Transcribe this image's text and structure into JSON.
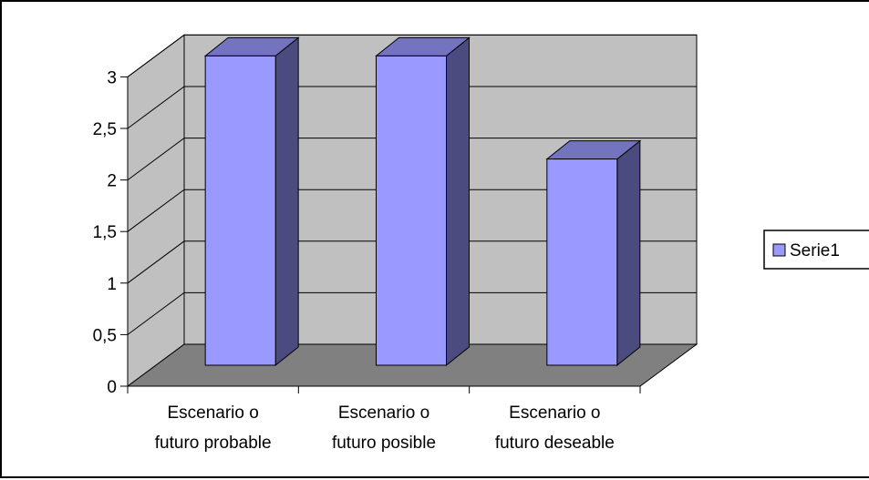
{
  "chart_data": {
    "type": "bar",
    "categories": [
      [
        "Escenario o",
        "futuro probable"
      ],
      [
        "Escenario o",
        "futuro posible"
      ],
      [
        "Escenario o",
        "futuro deseable"
      ]
    ],
    "series": [
      {
        "name": "Serie1",
        "values": [
          3,
          3,
          2
        ]
      }
    ],
    "title": "",
    "xlabel": "",
    "ylabel": "",
    "ylim": [
      0,
      3
    ],
    "ytick_values": [
      0,
      0.5,
      1,
      1.5,
      2,
      2.5,
      3
    ],
    "ytick_labels": [
      "0",
      "0,5",
      "1",
      "1,5",
      "2",
      "2,5",
      "3"
    ],
    "grid": true,
    "three_d": true,
    "legend_position": "right",
    "colors": {
      "bar_front": "#9999FF",
      "bar_side": "#4B4B80",
      "bar_top": "#7373C0",
      "back_wall": "#C0C0C0",
      "side_wall": "#C0C0C0",
      "floor": "#808080",
      "gridline": "#000000",
      "border": "#000000"
    }
  }
}
